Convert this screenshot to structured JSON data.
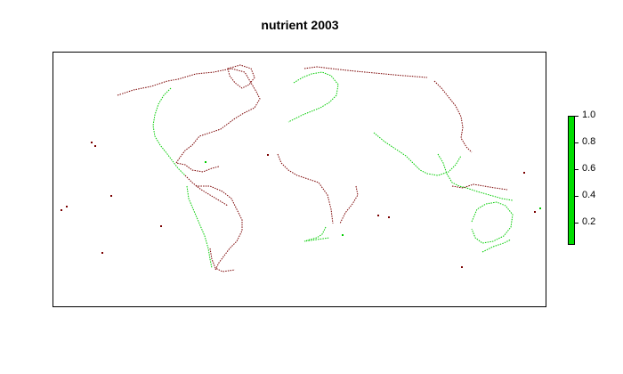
{
  "title": "nutrient 2003",
  "legend": {
    "colors": {
      "fill": "#00dd00",
      "coast_low": "#7a0000",
      "coast_high": "#00cc00"
    },
    "ticks": [
      {
        "label": "1.0",
        "value": 1.0
      },
      {
        "label": "0.8",
        "value": 0.8
      },
      {
        "label": "0.6",
        "value": 0.6
      },
      {
        "label": "0.4",
        "value": 0.4
      },
      {
        "label": "0.2",
        "value": 0.2
      }
    ],
    "range": [
      0.05,
      1.0
    ]
  }
}
